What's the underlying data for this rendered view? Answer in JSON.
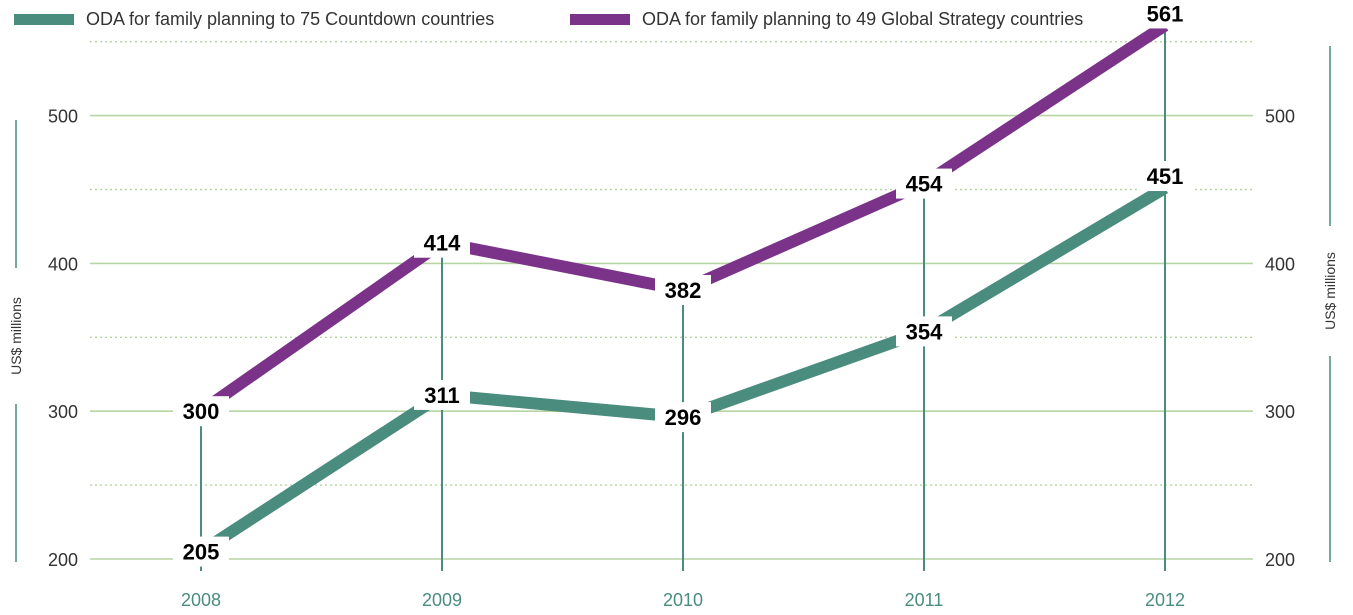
{
  "colors": {
    "series1": "#4a8c7e",
    "series2": "#7b3389",
    "grid": "#b7d4a3",
    "xtick": "#4a8c7e",
    "axis_rule": "#4a8c7e"
  },
  "chart_data": {
    "type": "line",
    "title": "",
    "x": [
      "2008",
      "2009",
      "2010",
      "2011",
      "2012"
    ],
    "series": [
      {
        "name": "ODA for family planning to 75 Countdown countries",
        "values": [
          205,
          311,
          296,
          354,
          451
        ]
      },
      {
        "name": "ODA for family planning to 49 Global Strategy countries",
        "values": [
          300,
          414,
          382,
          454,
          561
        ]
      }
    ],
    "ylabel": "US$ millions",
    "ylabel_right": "US$ millions",
    "ylim": [
      200,
      550
    ],
    "yticks": [
      200,
      300,
      400,
      500
    ],
    "minor_gridlines": [
      250,
      350,
      450,
      550
    ],
    "grid": true,
    "legend_position": "top-left",
    "data_labels": true
  }
}
